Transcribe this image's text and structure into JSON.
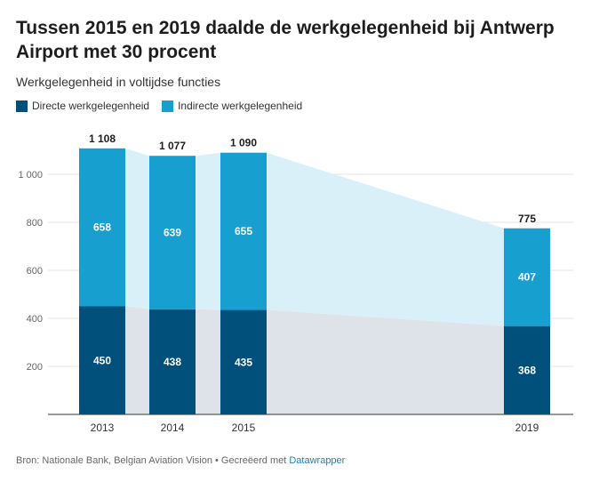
{
  "title": "Tussen 2015 en 2019 daalde de werkgelegenheid bij Antwerp Airport met 30 procent",
  "subtitle": "Werkgelegenheid in voltijdse functies",
  "footer": {
    "source": "Bron: Nationale Bank, Belgian Aviation Vision • Gecreëerd met ",
    "tool": "Datawrapper"
  },
  "colors": {
    "direct": "#00507b",
    "indirect": "#179fcf",
    "direct_area": "#dde3e8",
    "indirect_area": "#d9f0f8"
  },
  "chart_data": {
    "type": "bar",
    "stacked": true,
    "categories": [
      "2013",
      "2014",
      "2015",
      "2019"
    ],
    "series": [
      {
        "name": "Directe werkgelegenheid",
        "values": [
          450,
          438,
          435,
          368
        ]
      },
      {
        "name": "Indirecte werkgelegenheid",
        "values": [
          658,
          639,
          655,
          407
        ]
      }
    ],
    "totals": [
      "1 108",
      "1 077",
      "1 090",
      "775"
    ],
    "y_ticks": [
      {
        "value": 200,
        "label": "200"
      },
      {
        "value": 400,
        "label": "400"
      },
      {
        "value": 600,
        "label": "600"
      },
      {
        "value": 800,
        "label": "800"
      },
      {
        "value": 1000,
        "label": "1 000"
      }
    ],
    "ylim": [
      0,
      1150
    ],
    "grid": true,
    "legend_position": "top-left"
  }
}
